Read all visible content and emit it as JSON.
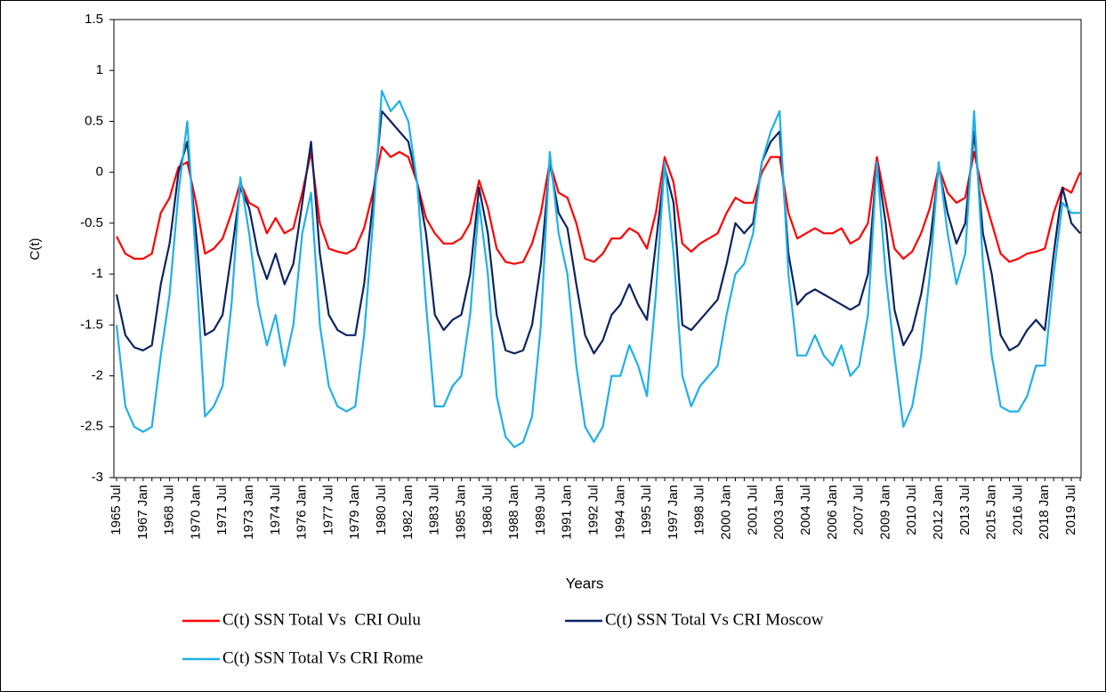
{
  "chart_data": {
    "type": "line",
    "x_label": "Years",
    "y_label": "C(t)",
    "categories": [
      "1965 Jul",
      null,
      null,
      "1967 Jan",
      null,
      null,
      "1968 Jul",
      null,
      null,
      "1970 Jan",
      null,
      null,
      "1971 Jul",
      null,
      null,
      "1973 Jan",
      null,
      null,
      "1974 Jul",
      null,
      null,
      "1976 Jan",
      null,
      null,
      "1977 Jul",
      null,
      null,
      "1979 Jan",
      null,
      null,
      "1980 Jul",
      null,
      null,
      "1982 Jan",
      null,
      null,
      "1983 Jul",
      null,
      null,
      "1985 Jan",
      null,
      null,
      "1986 Jul",
      null,
      null,
      "1988 Jan",
      null,
      null,
      "1989 Jul",
      null,
      null,
      "1991 Jan",
      null,
      null,
      "1992 Jul",
      null,
      null,
      "1994 Jan",
      null,
      null,
      "1995 Jul",
      null,
      null,
      "1997 Jan",
      null,
      null,
      "1998 Jul",
      null,
      null,
      "2000 Jan",
      null,
      null,
      "2001 Jul",
      null,
      null,
      "2003 Jan",
      null,
      null,
      "2004 Jul",
      null,
      null,
      "2006 Jan",
      null,
      null,
      "2007 Jul",
      null,
      null,
      "2009 Jan",
      null,
      null,
      "2010 Jul",
      null,
      null,
      "2012 Jan",
      null,
      null,
      "2013 Jul",
      null,
      null,
      "2015 Jan",
      null,
      null,
      "2016 Jul",
      null,
      null,
      "2018 Jan",
      null,
      null,
      "2019 Jul",
      null
    ],
    "series": [
      {
        "name": "C(t) SSN Total Vs  CRI Oulu",
        "color": "#ff0000",
        "values": [
          -0.63,
          -0.8,
          -0.85,
          -0.85,
          -0.8,
          -0.4,
          -0.25,
          0.05,
          0.1,
          -0.3,
          -0.8,
          -0.75,
          -0.65,
          -0.4,
          -0.1,
          -0.3,
          -0.35,
          -0.6,
          -0.45,
          -0.6,
          -0.55,
          -0.2,
          0.2,
          -0.5,
          -0.75,
          -0.78,
          -0.8,
          -0.75,
          -0.55,
          -0.2,
          0.25,
          0.15,
          0.2,
          0.15,
          -0.1,
          -0.45,
          -0.6,
          -0.7,
          -0.7,
          -0.65,
          -0.5,
          -0.08,
          -0.35,
          -0.75,
          -0.88,
          -0.9,
          -0.88,
          -0.7,
          -0.4,
          0.1,
          -0.2,
          -0.25,
          -0.5,
          -0.85,
          -0.88,
          -0.8,
          -0.65,
          -0.65,
          -0.55,
          -0.6,
          -0.75,
          -0.4,
          0.15,
          -0.1,
          -0.7,
          -0.78,
          -0.7,
          -0.65,
          -0.6,
          -0.4,
          -0.25,
          -0.3,
          -0.3,
          0.0,
          0.15,
          0.15,
          -0.4,
          -0.65,
          -0.6,
          -0.55,
          -0.6,
          -0.6,
          -0.55,
          -0.7,
          -0.65,
          -0.5,
          0.15,
          -0.3,
          -0.75,
          -0.85,
          -0.78,
          -0.6,
          -0.35,
          0.05,
          -0.2,
          -0.3,
          -0.25,
          0.2,
          -0.2,
          -0.5,
          -0.8,
          -0.88,
          -0.85,
          -0.8,
          -0.78,
          -0.75,
          -0.4,
          -0.15,
          -0.2,
          0.0
        ]
      },
      {
        "name": "C(t) SSN Total Vs CRI Moscow",
        "color": "#0c2461",
        "values": [
          -1.2,
          -1.6,
          -1.72,
          -1.75,
          -1.7,
          -1.1,
          -0.7,
          0.0,
          0.3,
          -0.6,
          -1.6,
          -1.55,
          -1.4,
          -0.8,
          -0.15,
          -0.35,
          -0.8,
          -1.05,
          -0.8,
          -1.1,
          -0.9,
          -0.3,
          0.3,
          -0.8,
          -1.4,
          -1.55,
          -1.6,
          -1.6,
          -1.1,
          -0.3,
          0.6,
          0.5,
          0.4,
          0.3,
          -0.1,
          -0.6,
          -1.4,
          -1.55,
          -1.45,
          -1.4,
          -1.0,
          -0.15,
          -0.6,
          -1.4,
          -1.75,
          -1.78,
          -1.75,
          -1.5,
          -0.9,
          0.1,
          -0.4,
          -0.55,
          -1.1,
          -1.6,
          -1.78,
          -1.65,
          -1.4,
          -1.3,
          -1.1,
          -1.3,
          -1.45,
          -0.7,
          0.05,
          -0.3,
          -1.5,
          -1.55,
          -1.45,
          -1.35,
          -1.25,
          -0.9,
          -0.5,
          -0.6,
          -0.5,
          0.1,
          0.3,
          0.4,
          -0.8,
          -1.3,
          -1.2,
          -1.15,
          -1.2,
          -1.25,
          -1.3,
          -1.35,
          -1.3,
          -1.0,
          0.1,
          -0.5,
          -1.35,
          -1.7,
          -1.55,
          -1.2,
          -0.7,
          0.05,
          -0.4,
          -0.7,
          -0.5,
          0.4,
          -0.6,
          -1.0,
          -1.6,
          -1.75,
          -1.7,
          -1.55,
          -1.45,
          -1.55,
          -0.8,
          -0.15,
          -0.5,
          -0.6
        ]
      },
      {
        "name": "C(t) SSN Total Vs CRI Rome",
        "color": "#1fb0e8",
        "values": [
          -1.5,
          -2.3,
          -2.5,
          -2.55,
          -2.5,
          -1.8,
          -1.2,
          -0.2,
          0.5,
          -0.9,
          -2.4,
          -2.3,
          -2.1,
          -1.3,
          -0.05,
          -0.6,
          -1.3,
          -1.7,
          -1.4,
          -1.9,
          -1.5,
          -0.6,
          -0.2,
          -1.5,
          -2.1,
          -2.3,
          -2.35,
          -2.3,
          -1.6,
          -0.5,
          0.8,
          0.6,
          0.7,
          0.5,
          -0.1,
          -1.3,
          -2.3,
          -2.3,
          -2.1,
          -2.0,
          -1.4,
          -0.3,
          -1.0,
          -2.2,
          -2.6,
          -2.7,
          -2.65,
          -2.4,
          -1.5,
          0.2,
          -0.6,
          -1.0,
          -1.9,
          -2.5,
          -2.65,
          -2.5,
          -2.0,
          -2.0,
          -1.7,
          -1.9,
          -2.2,
          -1.2,
          0.1,
          -0.8,
          -2.0,
          -2.3,
          -2.1,
          -2.0,
          -1.9,
          -1.4,
          -1.0,
          -0.9,
          -0.6,
          0.1,
          0.4,
          0.6,
          -1.0,
          -1.8,
          -1.8,
          -1.6,
          -1.8,
          -1.9,
          -1.7,
          -2.0,
          -1.9,
          -1.4,
          0.1,
          -1.0,
          -1.8,
          -2.5,
          -2.3,
          -1.8,
          -1.0,
          0.1,
          -0.6,
          -1.1,
          -0.8,
          0.6,
          -0.9,
          -1.8,
          -2.3,
          -2.35,
          -2.35,
          -2.2,
          -1.9,
          -1.9,
          -1.0,
          -0.3,
          -0.4,
          -0.4
        ]
      }
    ],
    "ylim": [
      -3,
      1.5
    ],
    "yticks": [
      -3,
      -2.5,
      -2,
      -1.5,
      -1,
      -0.5,
      0,
      0.5,
      1,
      1.5
    ],
    "grid": false,
    "legend": "bottom"
  }
}
